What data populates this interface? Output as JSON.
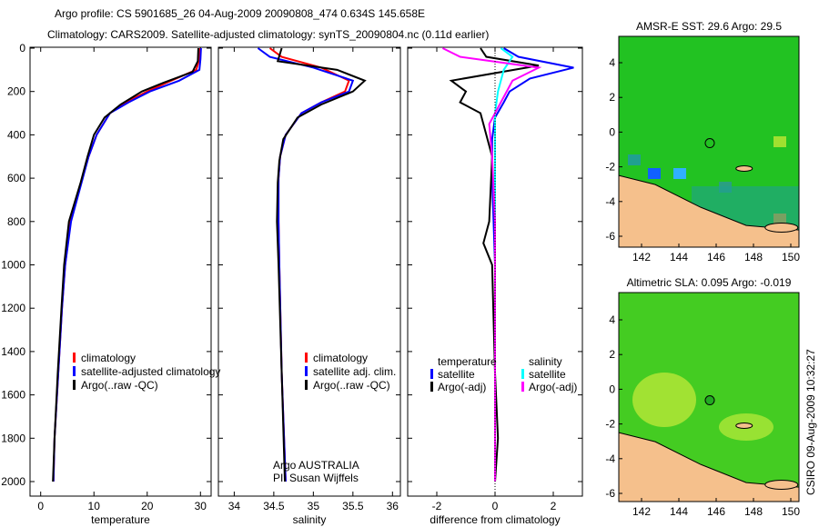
{
  "title_line1": "Argo profile: CS 5901685_26 04-Aug-2009 20090808_474 0.634S 145.658E",
  "title_line2": "Climatology: CARS2009. Satellite-adjusted climatology: synTS_20090804.nc (0.11d earlier)",
  "side_label": "CSIRO 09-Aug-2009 10:32:27",
  "colors": {
    "clim": "#ff0000",
    "sat": "#0000ff",
    "argo": "#000000",
    "sal_sat": "#00ffff",
    "sal_argo": "#ff00ff",
    "ocean": "#22c222",
    "land": "#f5c08c"
  },
  "chart_data": [
    {
      "type": "line",
      "id": "temperature",
      "xlabel": "temperature",
      "xlim": [
        -2,
        32
      ],
      "ylim": [
        0,
        2050
      ],
      "xticks": [
        "0",
        "10",
        "20",
        "30"
      ],
      "xtickvals": [
        0,
        10,
        20,
        30
      ],
      "yticks": [
        "0",
        "200",
        "400",
        "600",
        "800",
        "1000",
        "1200",
        "1400",
        "1600",
        "1800",
        "2000"
      ],
      "legend": [
        "climatology",
        "satellite-adjusted climatology",
        "Argo(..raw -QC)"
      ],
      "series": [
        {
          "name": "climatology",
          "color": "#ff0000",
          "points": [
            [
              29.9,
              0
            ],
            [
              29.8,
              50
            ],
            [
              29.2,
              100
            ],
            [
              24.5,
              150
            ],
            [
              20,
              200
            ],
            [
              16,
              250
            ],
            [
              13,
              300
            ],
            [
              10.5,
              400
            ],
            [
              9,
              500
            ],
            [
              7.8,
              600
            ],
            [
              5.6,
              800
            ],
            [
              4.6,
              1000
            ],
            [
              4,
              1200
            ],
            [
              3.3,
              1500
            ],
            [
              2.6,
              1800
            ],
            [
              2.4,
              2000
            ]
          ]
        },
        {
          "name": "satellite",
          "color": "#0000ff",
          "points": [
            [
              30.1,
              0
            ],
            [
              30,
              50
            ],
            [
              29.8,
              100
            ],
            [
              26,
              150
            ],
            [
              20.5,
              200
            ],
            [
              16.5,
              250
            ],
            [
              13,
              300
            ],
            [
              10.5,
              400
            ],
            [
              9,
              500
            ],
            [
              7.9,
              600
            ],
            [
              5.7,
              800
            ],
            [
              4.6,
              1000
            ],
            [
              4,
              1200
            ],
            [
              3.3,
              1500
            ],
            [
              2.6,
              1800
            ],
            [
              2.4,
              2000
            ]
          ]
        },
        {
          "name": "argo",
          "color": "#000000",
          "points": [
            [
              29.6,
              0
            ],
            [
              29.5,
              60
            ],
            [
              28.5,
              110
            ],
            [
              23,
              160
            ],
            [
              19,
              200
            ],
            [
              15,
              260
            ],
            [
              12,
              320
            ],
            [
              10,
              400
            ],
            [
              8.8,
              500
            ],
            [
              7.5,
              620
            ],
            [
              5.3,
              800
            ],
            [
              4.4,
              1000
            ],
            [
              3.9,
              1200
            ],
            [
              3.2,
              1500
            ],
            [
              2.6,
              1800
            ],
            [
              2.3,
              2000
            ]
          ]
        }
      ]
    },
    {
      "type": "line",
      "id": "salinity",
      "xlabel": "salinity",
      "xlim": [
        33.8,
        36.1
      ],
      "ylim": [
        0,
        2050
      ],
      "xticks": [
        "34",
        "34.5",
        "35",
        "35.5",
        "36"
      ],
      "xtickvals": [
        34,
        34.5,
        35,
        35.5,
        36
      ],
      "legend": [
        "climatology",
        "satellite adj. clim.",
        "Argo(..raw -QC)"
      ],
      "annotation": [
        "Argo AUSTRALIA",
        "PI: Susan Wijffels"
      ],
      "series": [
        {
          "name": "climatology",
          "color": "#ff0000",
          "points": [
            [
              34.45,
              0
            ],
            [
              34.6,
              40
            ],
            [
              35.1,
              90
            ],
            [
              35.45,
              150
            ],
            [
              35.4,
              200
            ],
            [
              35.1,
              250
            ],
            [
              34.85,
              300
            ],
            [
              34.65,
              400
            ],
            [
              34.58,
              500
            ],
            [
              34.56,
              600
            ],
            [
              34.56,
              800
            ],
            [
              34.57,
              1000
            ],
            [
              34.6,
              1500
            ],
            [
              34.65,
              2000
            ]
          ]
        },
        {
          "name": "satellite",
          "color": "#0000ff",
          "points": [
            [
              34.3,
              0
            ],
            [
              34.45,
              40
            ],
            [
              35.0,
              90
            ],
            [
              35.5,
              150
            ],
            [
              35.45,
              200
            ],
            [
              35.1,
              250
            ],
            [
              34.85,
              300
            ],
            [
              34.65,
              400
            ],
            [
              34.58,
              500
            ],
            [
              34.56,
              600
            ],
            [
              34.56,
              800
            ],
            [
              34.57,
              1000
            ],
            [
              34.6,
              1500
            ],
            [
              34.65,
              2000
            ]
          ]
        },
        {
          "name": "argo",
          "color": "#000000",
          "points": [
            [
              34.6,
              0
            ],
            [
              34.55,
              60
            ],
            [
              35.3,
              100
            ],
            [
              35.65,
              150
            ],
            [
              35.5,
              200
            ],
            [
              35.1,
              260
            ],
            [
              34.8,
              320
            ],
            [
              34.62,
              420
            ],
            [
              34.57,
              520
            ],
            [
              34.55,
              620
            ],
            [
              34.54,
              800
            ],
            [
              34.56,
              1000
            ],
            [
              34.6,
              1500
            ],
            [
              34.64,
              2000
            ]
          ]
        }
      ]
    },
    {
      "type": "line",
      "id": "difference",
      "xlabel": "difference from climatology",
      "xlim": [
        -3,
        3
      ],
      "ylim": [
        0,
        2050
      ],
      "xticks": [
        "-2",
        "0",
        "2"
      ],
      "xtickvals": [
        -2,
        0,
        2
      ],
      "legend_t": [
        "temperature",
        "satellite",
        "Argo(-adj)"
      ],
      "legend_s": [
        "salinity",
        "satellite",
        "Argo(-adj)"
      ],
      "series": [
        {
          "name": "temp-satellite",
          "color": "#0000ff",
          "points": [
            [
              0.3,
              0
            ],
            [
              0.8,
              40
            ],
            [
              2.7,
              90
            ],
            [
              1.2,
              140
            ],
            [
              0.5,
              200
            ],
            [
              0.3,
              250
            ],
            [
              0,
              320
            ],
            [
              -0.1,
              420
            ],
            [
              -0.1,
              600
            ],
            [
              0,
              1000
            ],
            [
              0,
              2000
            ]
          ]
        },
        {
          "name": "temp-argo",
          "color": "#000000",
          "points": [
            [
              -0.5,
              0
            ],
            [
              -0.3,
              40
            ],
            [
              1.5,
              80
            ],
            [
              -1.5,
              150
            ],
            [
              -1,
              200
            ],
            [
              -1.2,
              250
            ],
            [
              -0.5,
              300
            ],
            [
              -0.3,
              400
            ],
            [
              -0.1,
              500
            ],
            [
              -0.2,
              800
            ],
            [
              -0.4,
              900
            ],
            [
              -0.1,
              1000
            ],
            [
              0,
              1500
            ],
            [
              0.1,
              1800
            ],
            [
              0,
              2000
            ]
          ]
        },
        {
          "name": "sal-satellite",
          "color": "#00ffff",
          "points": [
            [
              0.2,
              0
            ],
            [
              0.6,
              40
            ],
            [
              0.3,
              100
            ],
            [
              0.1,
              200
            ],
            [
              0,
              300
            ],
            [
              0,
              2000
            ]
          ]
        },
        {
          "name": "sal-argo",
          "color": "#ff00ff",
          "points": [
            [
              -1.8,
              0
            ],
            [
              -1.2,
              40
            ],
            [
              1.5,
              90
            ],
            [
              0.6,
              150
            ],
            [
              0.2,
              250
            ],
            [
              -0.2,
              350
            ],
            [
              -0.1,
              500
            ],
            [
              0,
              800
            ],
            [
              0,
              2000
            ]
          ]
        }
      ]
    }
  ],
  "maps": [
    {
      "title": "AMSR-E SST: 29.6 Argo: 29.5",
      "xticks": [
        "142",
        "144",
        "146",
        "148",
        "150"
      ],
      "yticks": [
        "4",
        "2",
        "0",
        "-2",
        "-4",
        "-6"
      ],
      "ocean": "#22c222"
    },
    {
      "title": "Altimetric SLA: 0.095 Argo: -0.019",
      "xticks": [
        "142",
        "144",
        "146",
        "148",
        "150"
      ],
      "yticks": [
        "4",
        "2",
        "0",
        "-2",
        "-4",
        "-6"
      ],
      "ocean": "#44cc22"
    }
  ],
  "argo_pos": {
    "lon": 145.658,
    "lat": -0.634
  }
}
